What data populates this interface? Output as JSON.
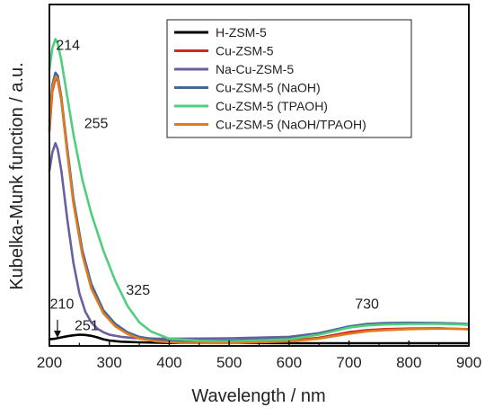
{
  "chart_data": {
    "type": "line",
    "xlabel": "Wavelength / nm",
    "ylabel": "Kubelka-Munk function / a.u.",
    "xlim": [
      200,
      900
    ],
    "ylim": [
      0,
      1
    ],
    "xticks": [
      "200",
      "300",
      "400",
      "500",
      "600",
      "700",
      "800",
      "900"
    ],
    "grid": false,
    "legend_position": "top-right",
    "annotations": [
      {
        "text": "214",
        "x": 214,
        "y": 0.955
      },
      {
        "text": "255",
        "x": 255,
        "y": 0.7
      },
      {
        "text": "325",
        "x": 325,
        "y": 0.155
      },
      {
        "text": "210",
        "x": 210,
        "y": 0.11
      },
      {
        "text": "251",
        "x": 251,
        "y": 0.04
      },
      {
        "text": "730",
        "x": 730,
        "y": 0.11
      }
    ],
    "series": [
      {
        "name": "H-ZSM-5",
        "color": "#000000",
        "x": [
          200,
          210,
          220,
          230,
          240,
          251,
          260,
          270,
          280,
          290,
          300,
          320,
          350,
          400,
          500,
          600,
          700,
          800,
          900
        ],
        "y": [
          0.01,
          0.012,
          0.016,
          0.02,
          0.023,
          0.025,
          0.024,
          0.021,
          0.016,
          0.01,
          0.006,
          0.002,
          0.0,
          -0.002,
          -0.002,
          -0.003,
          -0.003,
          -0.003,
          -0.003
        ]
      },
      {
        "name": "Cu-ZSM-5",
        "color": "#d62728",
        "x": [
          200,
          205,
          210,
          214,
          220,
          230,
          240,
          255,
          270,
          290,
          310,
          330,
          350,
          380,
          420,
          500,
          600,
          650,
          700,
          730,
          760,
          800,
          850,
          880,
          900
        ],
        "y": [
          0.69,
          0.82,
          0.86,
          0.855,
          0.79,
          0.62,
          0.46,
          0.29,
          0.18,
          0.1,
          0.055,
          0.03,
          0.015,
          0.005,
          0.0,
          0.0,
          0.005,
          0.015,
          0.033,
          0.04,
          0.043,
          0.045,
          0.046,
          0.044,
          0.043
        ]
      },
      {
        "name": "Na-Cu-ZSM-5",
        "color": "#6a5fa0",
        "x": [
          200,
          205,
          210,
          214,
          220,
          230,
          240,
          250,
          260,
          270,
          280,
          290,
          300,
          320,
          340,
          380,
          420,
          500,
          600,
          650,
          700,
          730,
          760,
          800,
          850,
          900
        ],
        "y": [
          0.56,
          0.62,
          0.65,
          0.63,
          0.56,
          0.4,
          0.26,
          0.16,
          0.1,
          0.065,
          0.045,
          0.033,
          0.025,
          0.018,
          0.014,
          0.012,
          0.012,
          0.013,
          0.018,
          0.03,
          0.052,
          0.06,
          0.063,
          0.064,
          0.063,
          0.06
        ]
      },
      {
        "name": "Cu-ZSM-5 (NaOH)",
        "color": "#3f6b96",
        "x": [
          200,
          205,
          210,
          214,
          220,
          230,
          240,
          255,
          270,
          290,
          310,
          330,
          350,
          380,
          420,
          500,
          600,
          650,
          700,
          730,
          760,
          800,
          850,
          880,
          900
        ],
        "y": [
          0.72,
          0.84,
          0.88,
          0.87,
          0.8,
          0.63,
          0.47,
          0.3,
          0.19,
          0.105,
          0.06,
          0.033,
          0.018,
          0.008,
          0.004,
          0.005,
          0.012,
          0.028,
          0.05,
          0.058,
          0.061,
          0.062,
          0.062,
          0.06,
          0.057
        ]
      },
      {
        "name": "Cu-ZSM-5 (TPAOH)",
        "color": "#4fcf7d",
        "x": [
          200,
          205,
          210,
          214,
          220,
          230,
          240,
          255,
          270,
          290,
          310,
          330,
          350,
          370,
          400,
          450,
          500,
          600,
          650,
          700,
          730,
          760,
          800,
          850,
          900
        ],
        "y": [
          0.89,
          0.96,
          0.99,
          0.975,
          0.92,
          0.8,
          0.68,
          0.53,
          0.42,
          0.3,
          0.2,
          0.12,
          0.065,
          0.035,
          0.012,
          0.005,
          0.003,
          0.01,
          0.025,
          0.048,
          0.055,
          0.058,
          0.06,
          0.06,
          0.058
        ]
      },
      {
        "name": "Cu-ZSM-5 (NaOH/TPAOH)",
        "color": "#e07b1f",
        "x": [
          200,
          205,
          210,
          214,
          220,
          230,
          240,
          255,
          270,
          290,
          310,
          330,
          350,
          380,
          420,
          500,
          600,
          650,
          700,
          730,
          760,
          800,
          850,
          880,
          900
        ],
        "y": [
          0.7,
          0.83,
          0.865,
          0.86,
          0.79,
          0.615,
          0.455,
          0.285,
          0.175,
          0.095,
          0.052,
          0.028,
          0.012,
          0.003,
          -0.002,
          -0.003,
          0.003,
          0.012,
          0.028,
          0.036,
          0.04,
          0.043,
          0.045,
          0.044,
          0.042
        ]
      }
    ]
  }
}
